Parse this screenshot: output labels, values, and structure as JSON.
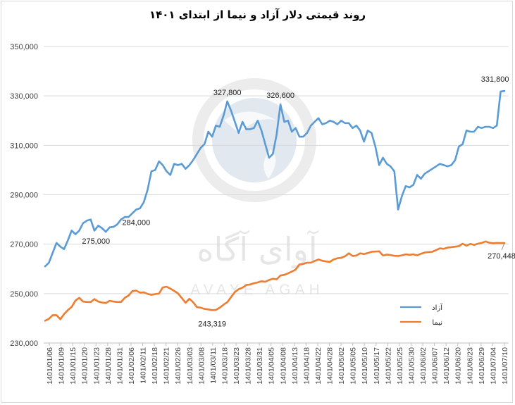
{
  "chart_data": {
    "type": "line",
    "title": "روند قیمتی دلار آزاد و نیما از ابتدای ۱۴۰۱",
    "xlabel": "",
    "ylabel": "",
    "ylim": [
      230000,
      350000
    ],
    "yticks": [
      "230,000",
      "250,000",
      "270,000",
      "290,000",
      "310,000",
      "330,000",
      "350,000"
    ],
    "ytick_values": [
      230000,
      250000,
      270000,
      290000,
      310000,
      330000,
      350000
    ],
    "grid": "horizontal",
    "legend_position": "lower-right",
    "x_tick_labels": [
      "1401/01/06",
      "1401/01/09",
      "1401/01/15",
      "1401/01/20",
      "1401/01/23",
      "1401/01/28",
      "1401/01/31",
      "1401/02/06",
      "1401/02/11",
      "1401/02/18",
      "1401/02/21",
      "1401/02/26",
      "1401/03/03",
      "1401/03/08",
      "1401/03/11",
      "1401/03/18",
      "1401/03/23",
      "1401/03/28",
      "1401/03/31",
      "1401/04/05",
      "1401/04/08",
      "1401/04/13",
      "1401/04/18",
      "1401/04/22",
      "1401/04/28",
      "1401/05/02",
      "1401/05/05",
      "1401/05/10",
      "1401/05/17",
      "1401/05/22",
      "1401/05/25",
      "1401/05/30",
      "1401/06/02",
      "1401/06/07",
      "1401/06/12",
      "1401/06/20",
      "1401/06/23",
      "1401/06/29",
      "1401/07/04",
      "1401/07/10"
    ],
    "series": [
      {
        "name": "آزاد",
        "color": "#5b9bd5",
        "values": [
          261000,
          262500,
          266500,
          270500,
          269000,
          268000,
          271500,
          275500,
          274000,
          275500,
          278500,
          279500,
          280000,
          275500,
          277500,
          276500,
          275000,
          276800,
          277000,
          278000,
          280000,
          281000,
          281000,
          282500,
          284000,
          284500,
          287000,
          292000,
          299500,
          300000,
          303500,
          302000,
          299500,
          298000,
          302500,
          302000,
          302500,
          300500,
          302000,
          304000,
          306500,
          309000,
          310500,
          315500,
          313500,
          318000,
          317500,
          322000,
          327800,
          324000,
          319500,
          315000,
          319500,
          316500,
          316500,
          317000,
          320000,
          316000,
          310500,
          305000,
          306500,
          314500,
          326600,
          319500,
          320000,
          315500,
          317000,
          313500,
          313500,
          315000,
          318000,
          319500,
          321000,
          318500,
          319000,
          320000,
          319500,
          318500,
          320000,
          319000,
          319000,
          317000,
          318000,
          316000,
          311500,
          316000,
          315000,
          309500,
          302000,
          305000,
          302500,
          301500,
          299500,
          284000,
          289500,
          293500,
          293000,
          294000,
          298000,
          296500,
          298500,
          299500,
          300500,
          301500,
          302500,
          302000,
          301500,
          302000,
          304000,
          309500,
          310500,
          316000,
          315500,
          315500,
          317500,
          317000,
          317500,
          317500,
          317000,
          318000,
          331800,
          332000
        ],
        "annotations": [
          {
            "label": "275,000",
            "value": 275000
          },
          {
            "label": "327,800",
            "value": 327800
          },
          {
            "label": "326,600",
            "value": 326600
          },
          {
            "label": "284,000",
            "value": 284000
          },
          {
            "label": "331,800",
            "value": 331800
          }
        ]
      },
      {
        "name": "نیما",
        "color": "#ed7d31",
        "values": [
          239000,
          239800,
          241300,
          241300,
          239600,
          241700,
          243300,
          244600,
          247200,
          248300,
          246800,
          246600,
          246600,
          247800,
          246800,
          246400,
          246200,
          247100,
          246800,
          246600,
          246600,
          248300,
          249200,
          251000,
          251200,
          250400,
          250500,
          249900,
          249500,
          249800,
          250000,
          252500,
          252800,
          252000,
          251100,
          250100,
          248200,
          246300,
          247900,
          246500,
          244500,
          244300,
          243800,
          243600,
          243319,
          243400,
          244300,
          245500,
          246500,
          248600,
          250600,
          251800,
          252400,
          253500,
          253700,
          254200,
          254500,
          255000,
          254800,
          255500,
          256000,
          255800,
          257300,
          257600,
          258200,
          258900,
          259700,
          261800,
          262000,
          262500,
          262500,
          263200,
          263800,
          263300,
          263000,
          262800,
          263800,
          264300,
          264500,
          265100,
          266300,
          265200,
          265400,
          266300,
          266000,
          266400,
          266900,
          267000,
          267100,
          265400,
          265800,
          265600,
          265300,
          265200,
          265500,
          265900,
          265700,
          265900,
          265500,
          266100,
          266600,
          266800,
          266900,
          267600,
          268300,
          268100,
          268600,
          268800,
          269000,
          269200,
          270200,
          269400,
          270100,
          269700,
          270200,
          270500,
          271100,
          270600,
          270400,
          270500,
          270448,
          270448
        ],
        "annotations": [
          {
            "label": "243,319",
            "value": 243319
          },
          {
            "label": "270,448",
            "value": 270448
          }
        ]
      }
    ]
  },
  "watermark": {
    "text_fa": "آوای آگاه",
    "text_en": "AVAYE AGAH"
  }
}
